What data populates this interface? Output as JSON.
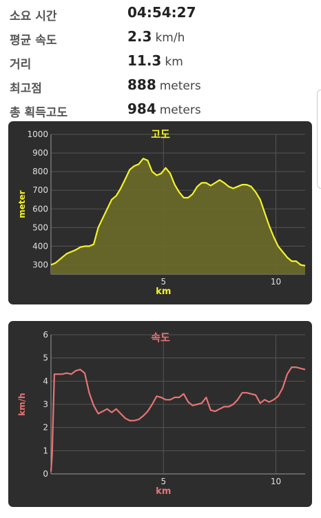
{
  "stats": [
    {
      "label": "소요 시간",
      "value": "04:54:27",
      "unit": ""
    },
    {
      "label": "평균 속도",
      "value": "2.3",
      "unit": "km/h"
    },
    {
      "label": "거리",
      "value": "11.3",
      "unit": "km"
    },
    {
      "label": "최고점",
      "value": "888",
      "unit": "meters"
    },
    {
      "label": "총 획득고도",
      "value": "984",
      "unit": "meters"
    }
  ],
  "colors": {
    "elevation": "#f4f42a",
    "elevation_fill": "#6b6b2a",
    "speed": "#e87474",
    "card": "#2d2d2d",
    "grid": "#555555",
    "tick": "#e0e0e0"
  },
  "chart_data": [
    {
      "type": "area",
      "title": "고도",
      "xlabel": "km",
      "ylabel": "meter",
      "xlim": [
        0,
        11.3
      ],
      "ylim": [
        250,
        1000
      ],
      "xticks": [
        5,
        10
      ],
      "yticks": [
        300,
        400,
        500,
        600,
        700,
        800,
        900,
        1000
      ],
      "grid": true,
      "series": [
        {
          "x": [
            0,
            0.2,
            0.5,
            0.7,
            0.9,
            1.1,
            1.3,
            1.5,
            1.7,
            1.9,
            2.1,
            2.3,
            2.5,
            2.7,
            2.9,
            3.1,
            3.3,
            3.5,
            3.7,
            3.9,
            4.1,
            4.3,
            4.5,
            4.7,
            4.9,
            5.1,
            5.3,
            5.5,
            5.7,
            5.9,
            6.1,
            6.3,
            6.5,
            6.7,
            6.9,
            7.1,
            7.3,
            7.5,
            7.7,
            7.9,
            8.1,
            8.3,
            8.5,
            8.7,
            8.9,
            9.1,
            9.3,
            9.5,
            9.7,
            9.9,
            10.1,
            10.3,
            10.5,
            10.7,
            10.9,
            11.1,
            11.3
          ],
          "y": [
            300,
            310,
            340,
            360,
            370,
            380,
            395,
            400,
            400,
            410,
            500,
            550,
            600,
            650,
            670,
            710,
            760,
            810,
            830,
            840,
            870,
            860,
            800,
            780,
            790,
            820,
            790,
            730,
            690,
            660,
            660,
            680,
            720,
            740,
            740,
            725,
            740,
            755,
            740,
            720,
            710,
            720,
            730,
            730,
            720,
            690,
            650,
            580,
            510,
            450,
            400,
            370,
            340,
            320,
            320,
            300,
            295
          ]
        }
      ]
    },
    {
      "type": "line",
      "title": "속도",
      "xlabel": "km",
      "ylabel": "km/h",
      "xlim": [
        0,
        11.3
      ],
      "ylim": [
        0,
        6
      ],
      "xticks": [
        5,
        10
      ],
      "yticks": [
        0,
        1,
        2,
        3,
        4,
        5,
        6
      ],
      "grid": true,
      "series": [
        {
          "x": [
            0,
            0.05,
            0.15,
            0.3,
            0.5,
            0.7,
            0.9,
            1.1,
            1.3,
            1.5,
            1.7,
            1.9,
            2.1,
            2.3,
            2.5,
            2.7,
            2.9,
            3.1,
            3.3,
            3.5,
            3.7,
            3.9,
            4.1,
            4.3,
            4.5,
            4.7,
            4.9,
            5.1,
            5.3,
            5.5,
            5.7,
            5.9,
            6.1,
            6.3,
            6.5,
            6.7,
            6.9,
            7.1,
            7.3,
            7.5,
            7.7,
            7.9,
            8.1,
            8.3,
            8.5,
            8.7,
            8.9,
            9.1,
            9.3,
            9.5,
            9.7,
            9.9,
            10.1,
            10.3,
            10.5,
            10.7,
            10.9,
            11.1,
            11.3
          ],
          "y": [
            0.1,
            0.8,
            4.3,
            4.3,
            4.3,
            4.35,
            4.3,
            4.45,
            4.5,
            4.35,
            3.5,
            2.95,
            2.6,
            2.7,
            2.8,
            2.65,
            2.8,
            2.6,
            2.4,
            2.3,
            2.3,
            2.35,
            2.5,
            2.7,
            3.0,
            3.35,
            3.3,
            3.2,
            3.2,
            3.3,
            3.3,
            3.45,
            3.1,
            2.95,
            3.0,
            3.05,
            3.3,
            2.75,
            2.7,
            2.8,
            2.9,
            2.9,
            3.0,
            3.2,
            3.5,
            3.5,
            3.45,
            3.4,
            3.05,
            3.2,
            3.1,
            3.2,
            3.35,
            3.7,
            4.3,
            4.6,
            4.6,
            4.55,
            4.5
          ]
        }
      ]
    }
  ]
}
